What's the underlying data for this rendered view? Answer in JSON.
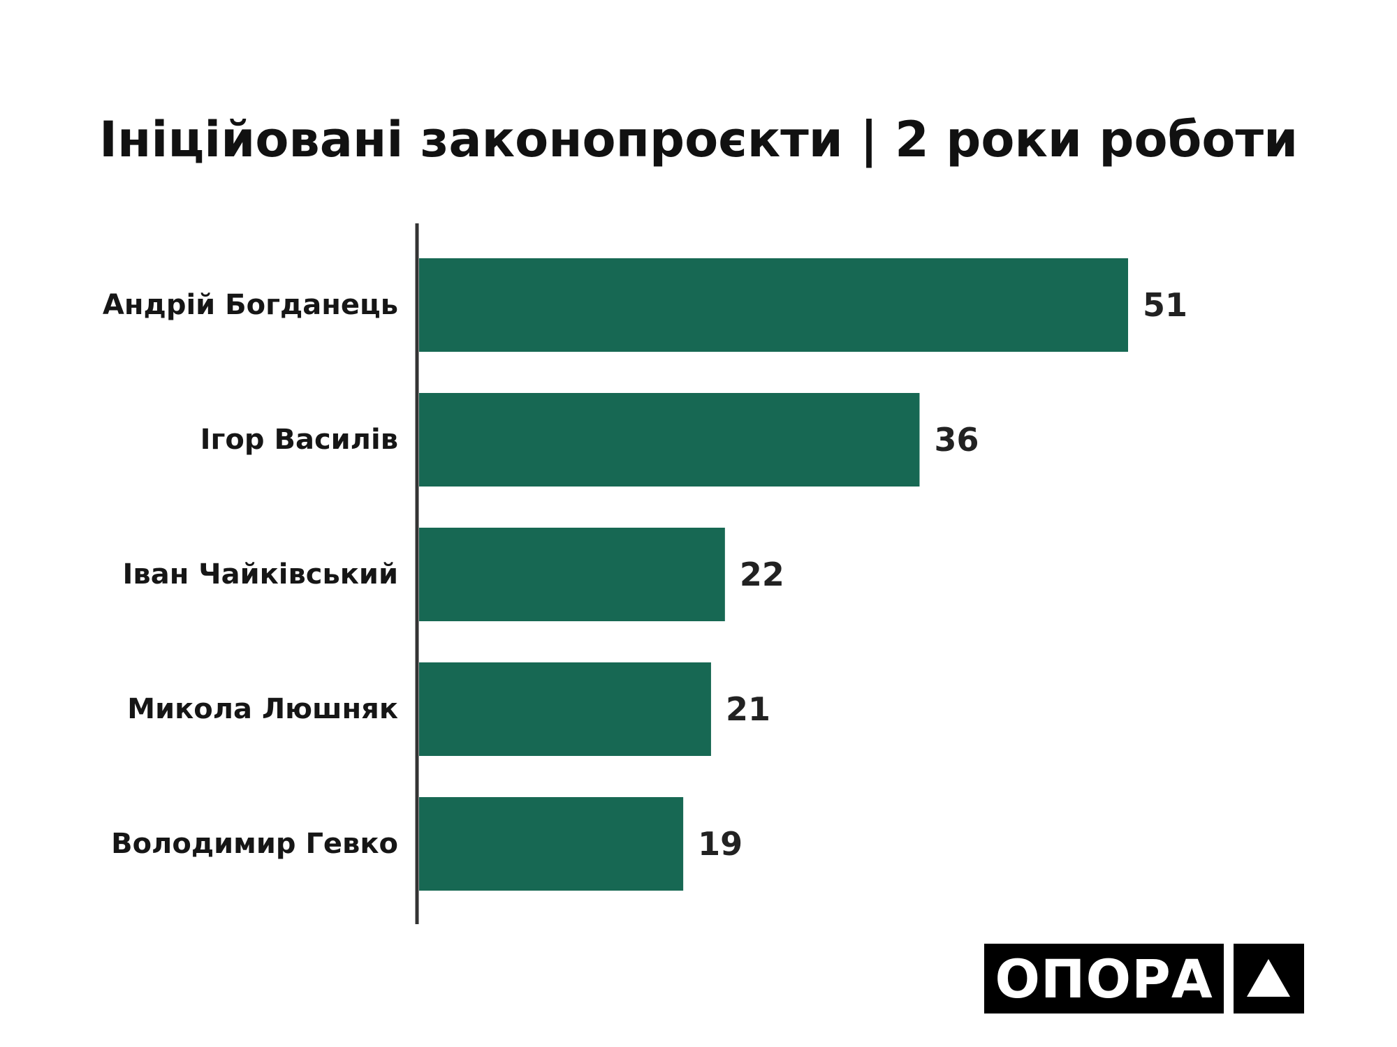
{
  "chart_data": {
    "type": "bar",
    "orientation": "horizontal",
    "title": "Ініційовані законопроєкти | 2 роки роботи",
    "categories": [
      "Андрій Богданець",
      "Ігор Василів",
      "Іван Чайківський",
      "Микола Люшняк",
      "Володимир Гевко"
    ],
    "values": [
      51,
      36,
      22,
      21,
      19
    ],
    "value_labels": [
      "51",
      "36",
      "22",
      "21",
      "19"
    ],
    "xlabel": "",
    "ylabel": "",
    "xlim": [
      0,
      60
    ],
    "grid": false,
    "bar_color": "#176853",
    "axis_color": "#333333"
  },
  "logo": {
    "text": "ОПОРА",
    "mark": "triangle-icon",
    "background": "#000000",
    "foreground": "#ffffff"
  }
}
